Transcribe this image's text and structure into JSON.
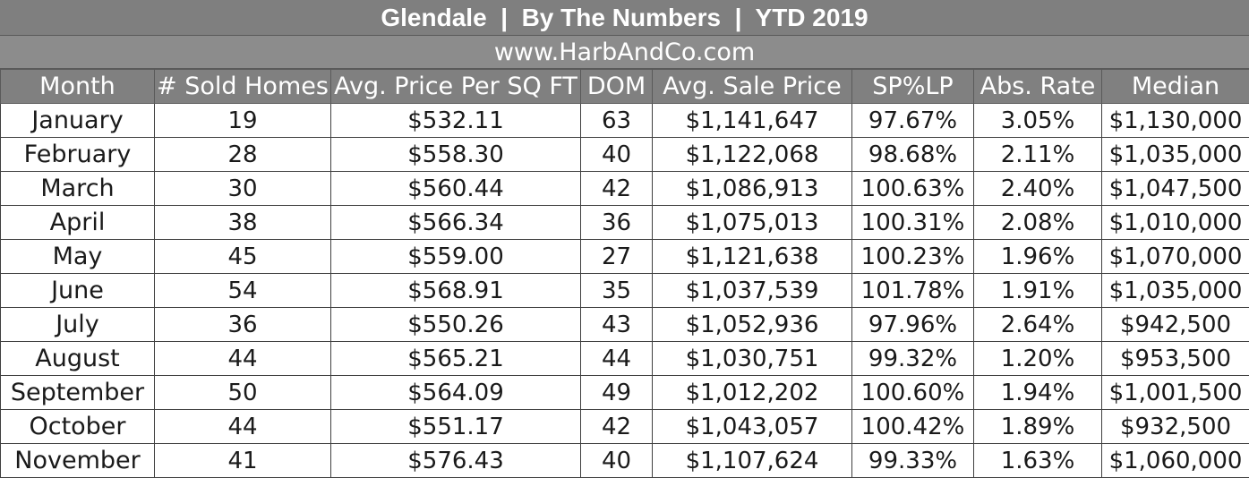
{
  "header": {
    "title": "Glendale  |  By The Numbers  |  YTD 2019",
    "website": "www.HarbAndCo.com"
  },
  "table": {
    "columns": [
      "Month",
      "# Sold Homes",
      "Avg. Price Per SQ FT",
      "DOM",
      "Avg. Sale Price",
      "SP%LP",
      "Abs. Rate",
      "Median"
    ],
    "rows": [
      [
        "January",
        "19",
        "$532.11",
        "63",
        "$1,141,647",
        "97.67%",
        "3.05%",
        "$1,130,000"
      ],
      [
        "February",
        "28",
        "$558.30",
        "40",
        "$1,122,068",
        "98.68%",
        "2.11%",
        "$1,035,000"
      ],
      [
        "March",
        "30",
        "$560.44",
        "42",
        "$1,086,913",
        "100.63%",
        "2.40%",
        "$1,047,500"
      ],
      [
        "April",
        "38",
        "$566.34",
        "36",
        "$1,075,013",
        "100.31%",
        "2.08%",
        "$1,010,000"
      ],
      [
        "May",
        "45",
        "$559.00",
        "27",
        "$1,121,638",
        "100.23%",
        "1.96%",
        "$1,070,000"
      ],
      [
        "June",
        "54",
        "$568.91",
        "35",
        "$1,037,539",
        "101.78%",
        "1.91%",
        "$1,035,000"
      ],
      [
        "July",
        "36",
        "$550.26",
        "43",
        "$1,052,936",
        "97.96%",
        "2.64%",
        "$942,500"
      ],
      [
        "August",
        "44",
        "$565.21",
        "44",
        "$1,030,751",
        "99.32%",
        "1.20%",
        "$953,500"
      ],
      [
        "September",
        "50",
        "$564.09",
        "49",
        "$1,012,202",
        "100.60%",
        "1.94%",
        "$1,001,500"
      ],
      [
        "October",
        "44",
        "$551.17",
        "42",
        "$1,043,057",
        "100.42%",
        "1.89%",
        "$932,500"
      ],
      [
        "November",
        "41",
        "$576.43",
        "40",
        "$1,107,624",
        "99.33%",
        "1.63%",
        "$1,060,000"
      ]
    ]
  },
  "colors": {
    "header_bg": "#808080",
    "header_text": "#ffffff",
    "cell_text": "#1a1a1a"
  }
}
